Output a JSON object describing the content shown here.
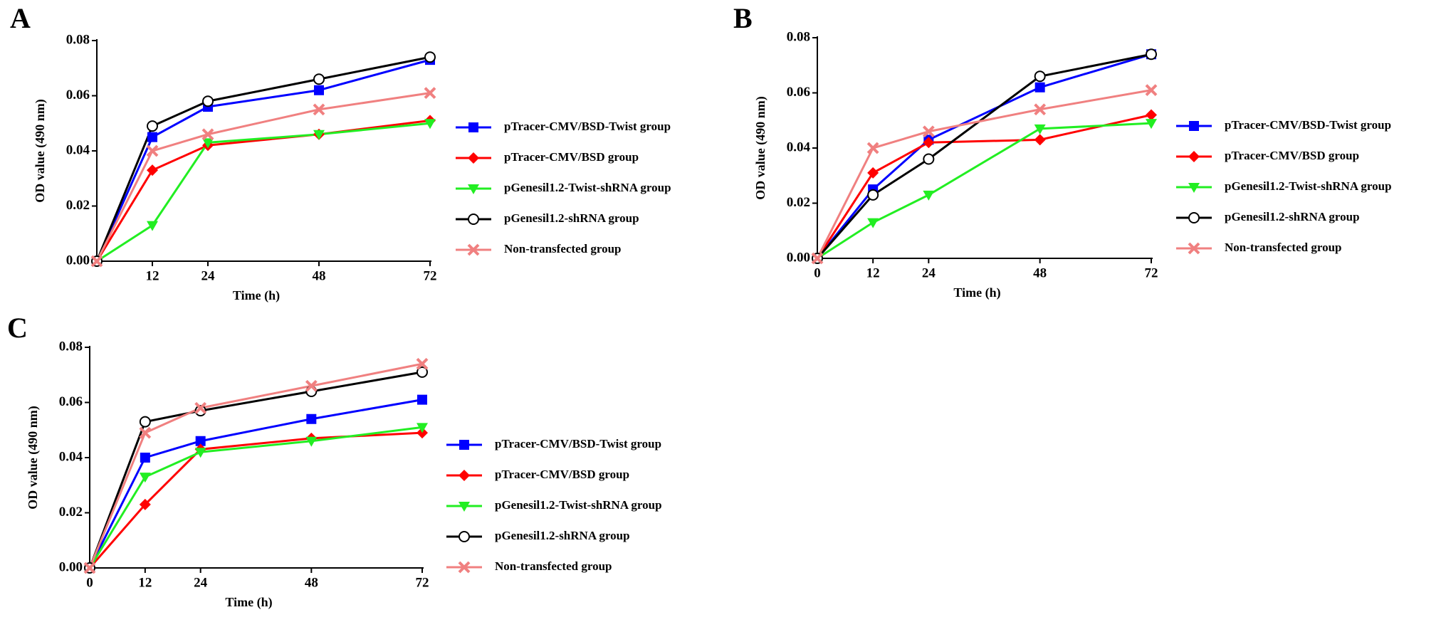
{
  "chart_data": [
    {
      "type": "line",
      "panel_label": "A",
      "x_label": "Time (h)",
      "y_label": "OD value (490 nm)",
      "x": [
        0,
        12,
        24,
        48,
        72
      ],
      "xlim": [
        0,
        72
      ],
      "xticks": [
        12,
        24,
        48,
        72
      ],
      "ylim": [
        0,
        0.08
      ],
      "yticks": [
        {
          "value": 0,
          "label": "0.00"
        },
        {
          "value": 0.02,
          "label": "0.02"
        },
        {
          "value": 0.04,
          "label": "0.04"
        },
        {
          "value": 0.06,
          "label": "0.06"
        },
        {
          "value": 0.08,
          "label": "0.08"
        }
      ],
      "series": [
        {
          "name": "pTracer-CMV/BSD-Twist group",
          "color": "#0000ff",
          "marker": "square",
          "values": [
            0,
            0.045,
            0.056,
            0.062,
            0.073
          ]
        },
        {
          "name": "pTracer-CMV/BSD group",
          "color": "#ff0000",
          "marker": "diamond",
          "values": [
            0,
            0.033,
            0.042,
            0.046,
            0.051
          ]
        },
        {
          "name": "pGenesil1.2-Twist-shRNA group",
          "color": "#22ee22",
          "marker": "triangle-down",
          "values": [
            0,
            0.013,
            0.043,
            0.046,
            0.05
          ]
        },
        {
          "name": "pGenesil1.2-shRNA group",
          "color": "#000000",
          "marker": "circle",
          "values": [
            0,
            0.049,
            0.058,
            0.066,
            0.074
          ]
        },
        {
          "name": "Non-transfected group",
          "color": "#f08080",
          "marker": "cross",
          "values": [
            0,
            0.04,
            0.046,
            0.055,
            0.061
          ]
        }
      ]
    },
    {
      "type": "line",
      "panel_label": "B",
      "x_label": "Time (h)",
      "y_label": "OD value (490 nm)",
      "x": [
        0,
        12,
        24,
        48,
        72
      ],
      "xlim": [
        0,
        72
      ],
      "xticks": [
        0,
        12,
        24,
        48,
        72
      ],
      "ylim": [
        0,
        0.08
      ],
      "yticks": [
        {
          "value": 0,
          "label": "0.00"
        },
        {
          "value": 0.02,
          "label": "0.02"
        },
        {
          "value": 0.04,
          "label": "0.04"
        },
        {
          "value": 0.06,
          "label": "0.06"
        },
        {
          "value": 0.08,
          "label": "0.08"
        }
      ],
      "series": [
        {
          "name": "pTracer-CMV/BSD-Twist group",
          "color": "#0000ff",
          "marker": "square",
          "values": [
            0,
            0.025,
            0.043,
            0.062,
            0.074
          ]
        },
        {
          "name": "pTracer-CMV/BSD group",
          "color": "#ff0000",
          "marker": "diamond",
          "values": [
            0,
            0.031,
            0.042,
            0.043,
            0.052
          ]
        },
        {
          "name": "pGenesil1.2-Twist-shRNA group",
          "color": "#22ee22",
          "marker": "triangle-down",
          "values": [
            0,
            0.013,
            0.023,
            0.047,
            0.049
          ]
        },
        {
          "name": "pGenesil1.2-shRNA group",
          "color": "#000000",
          "marker": "circle",
          "values": [
            0,
            0.023,
            0.036,
            0.066,
            0.074
          ]
        },
        {
          "name": "Non-transfected group",
          "color": "#f08080",
          "marker": "cross",
          "values": [
            0,
            0.04,
            0.046,
            0.054,
            0.061
          ]
        }
      ]
    },
    {
      "type": "line",
      "panel_label": "C",
      "x_label": "Time (h)",
      "y_label": "OD value (490 nm)",
      "x": [
        0,
        12,
        24,
        48,
        72
      ],
      "xlim": [
        0,
        72
      ],
      "xticks": [
        0,
        12,
        24,
        48,
        72
      ],
      "ylim": [
        0,
        0.08
      ],
      "yticks": [
        {
          "value": 0,
          "label": "0.00"
        },
        {
          "value": 0.02,
          "label": "0.02"
        },
        {
          "value": 0.04,
          "label": "0.04"
        },
        {
          "value": 0.06,
          "label": "0.06"
        },
        {
          "value": 0.08,
          "label": "0.08"
        }
      ],
      "series": [
        {
          "name": "pTracer-CMV/BSD-Twist group",
          "color": "#0000ff",
          "marker": "square",
          "values": [
            0,
            0.04,
            0.046,
            0.054,
            0.061
          ]
        },
        {
          "name": "pTracer-CMV/BSD group",
          "color": "#ff0000",
          "marker": "diamond",
          "values": [
            0,
            0.023,
            0.043,
            0.047,
            0.049
          ]
        },
        {
          "name": "pGenesil1.2-Twist-shRNA group",
          "color": "#22ee22",
          "marker": "triangle-down",
          "values": [
            0,
            0.033,
            0.042,
            0.046,
            0.051
          ]
        },
        {
          "name": "pGenesil1.2-shRNA group",
          "color": "#000000",
          "marker": "circle",
          "values": [
            0,
            0.053,
            0.057,
            0.064,
            0.071
          ]
        },
        {
          "name": "Non-transfected group",
          "color": "#f08080",
          "marker": "cross",
          "values": [
            0,
            0.049,
            0.058,
            0.066,
            0.074
          ]
        }
      ]
    }
  ]
}
